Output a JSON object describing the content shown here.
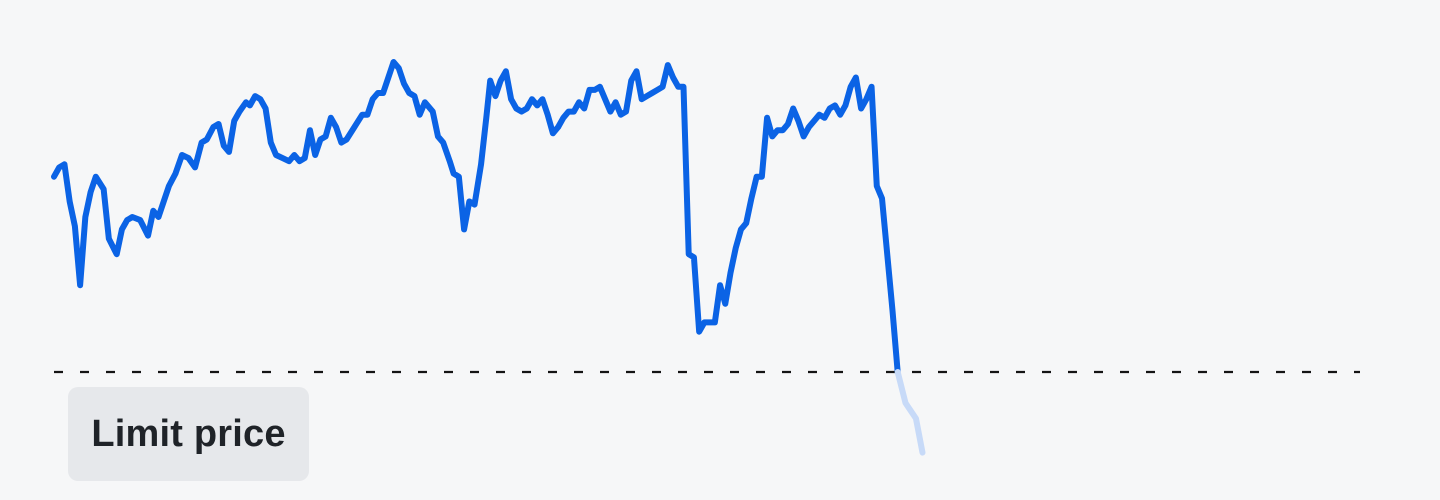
{
  "limit_label": "Limit price",
  "colors": {
    "line": "#0b63e5",
    "line_faded": "#c7daf8",
    "limit_line": "#141414",
    "background": "#f6f7f8",
    "label_bg": "#e6e8eb"
  },
  "chart_data": {
    "type": "line",
    "title": "",
    "xlabel": "",
    "ylabel": "",
    "grid": false,
    "legend": "none",
    "limit_price": 0,
    "ylim": [
      -27,
      100
    ],
    "xlim": [
      0,
      1
    ],
    "series": [
      {
        "values": [
          [
            0.0,
            63.0
          ],
          [
            0.004,
            66.0
          ],
          [
            0.008,
            67.0
          ],
          [
            0.012,
            55.0
          ],
          [
            0.016,
            47.0
          ],
          [
            0.02,
            28.0
          ],
          [
            0.024,
            50.0
          ],
          [
            0.028,
            58.0
          ],
          [
            0.032,
            63.0
          ],
          [
            0.038,
            59.0
          ],
          [
            0.042,
            43.0
          ],
          [
            0.048,
            38.0
          ],
          [
            0.052,
            46.0
          ],
          [
            0.056,
            49.0
          ],
          [
            0.06,
            50.0
          ],
          [
            0.066,
            49.0
          ],
          [
            0.072,
            44.0
          ],
          [
            0.076,
            52.0
          ],
          [
            0.08,
            50.0
          ],
          [
            0.084,
            55.0
          ],
          [
            0.088,
            60.0
          ],
          [
            0.093,
            64.0
          ],
          [
            0.098,
            70.0
          ],
          [
            0.103,
            69.0
          ],
          [
            0.108,
            66.0
          ],
          [
            0.113,
            74.0
          ],
          [
            0.117,
            75.0
          ],
          [
            0.122,
            79.0
          ],
          [
            0.126,
            80.0
          ],
          [
            0.13,
            73.0
          ],
          [
            0.134,
            71.0
          ],
          [
            0.138,
            81.0
          ],
          [
            0.142,
            84.0
          ],
          [
            0.147,
            87.0
          ],
          [
            0.15,
            86.0
          ],
          [
            0.154,
            89.0
          ],
          [
            0.158,
            88.0
          ],
          [
            0.162,
            85.0
          ],
          [
            0.166,
            74.0
          ],
          [
            0.17,
            70.0
          ],
          [
            0.175,
            69.0
          ],
          [
            0.18,
            68.0
          ],
          [
            0.184,
            70.0
          ],
          [
            0.188,
            68.0
          ],
          [
            0.192,
            69.0
          ],
          [
            0.196,
            78.0
          ],
          [
            0.2,
            70.0
          ],
          [
            0.204,
            75.0
          ],
          [
            0.208,
            76.0
          ],
          [
            0.212,
            82.0
          ],
          [
            0.216,
            79.0
          ],
          [
            0.22,
            74.0
          ],
          [
            0.224,
            75.0
          ],
          [
            0.23,
            79.0
          ],
          [
            0.236,
            83.0
          ],
          [
            0.24,
            83.0
          ],
          [
            0.244,
            88.0
          ],
          [
            0.248,
            90.0
          ],
          [
            0.252,
            90.0
          ],
          [
            0.256,
            95.0
          ],
          [
            0.26,
            100.0
          ],
          [
            0.264,
            98.0
          ],
          [
            0.268,
            93.0
          ],
          [
            0.272,
            90.0
          ],
          [
            0.276,
            89.0
          ],
          [
            0.28,
            83.0
          ],
          [
            0.284,
            87.0
          ],
          [
            0.29,
            84.0
          ],
          [
            0.294,
            76.0
          ],
          [
            0.298,
            74.0
          ],
          [
            0.303,
            68.0
          ],
          [
            0.306,
            64.0
          ],
          [
            0.31,
            63.0
          ],
          [
            0.314,
            46.0
          ],
          [
            0.318,
            55.0
          ],
          [
            0.322,
            54.0
          ],
          [
            0.327,
            67.0
          ],
          [
            0.331,
            82.0
          ],
          [
            0.334,
            94.0
          ],
          [
            0.338,
            89.0
          ],
          [
            0.342,
            94.0
          ],
          [
            0.346,
            97.0
          ],
          [
            0.35,
            88.0
          ],
          [
            0.354,
            85.0
          ],
          [
            0.358,
            84.0
          ],
          [
            0.362,
            85.0
          ],
          [
            0.366,
            88.0
          ],
          [
            0.37,
            86.0
          ],
          [
            0.374,
            88.0
          ],
          [
            0.378,
            83.0
          ],
          [
            0.382,
            77.0
          ],
          [
            0.386,
            79.0
          ],
          [
            0.39,
            82.0
          ],
          [
            0.394,
            84.0
          ],
          [
            0.398,
            84.0
          ],
          [
            0.402,
            87.0
          ],
          [
            0.406,
            85.0
          ],
          [
            0.41,
            91.0
          ],
          [
            0.414,
            91.0
          ],
          [
            0.418,
            92.0
          ],
          [
            0.422,
            88.0
          ],
          [
            0.426,
            84.0
          ],
          [
            0.43,
            87.0
          ],
          [
            0.434,
            83.0
          ],
          [
            0.438,
            84.0
          ],
          [
            0.442,
            94.0
          ],
          [
            0.446,
            97.0
          ],
          [
            0.45,
            88.0
          ],
          [
            0.454,
            89.0
          ],
          [
            0.458,
            90.0
          ],
          [
            0.462,
            91.0
          ],
          [
            0.466,
            92.0
          ],
          [
            0.47,
            99.0
          ],
          [
            0.474,
            95.0
          ],
          [
            0.478,
            92.0
          ],
          [
            0.482,
            92.0
          ],
          [
            0.486,
            38.0
          ],
          [
            0.49,
            37.0
          ],
          [
            0.494,
            13.0
          ],
          [
            0.498,
            16.0
          ],
          [
            0.502,
            16.0
          ],
          [
            0.506,
            16.0
          ],
          [
            0.51,
            28.0
          ],
          [
            0.514,
            22.0
          ],
          [
            0.518,
            32.0
          ],
          [
            0.522,
            40.0
          ],
          [
            0.526,
            46.0
          ],
          [
            0.53,
            48.0
          ],
          [
            0.534,
            56.0
          ],
          [
            0.538,
            63.0
          ],
          [
            0.542,
            63.0
          ],
          [
            0.546,
            82.0
          ],
          [
            0.55,
            76.0
          ],
          [
            0.554,
            78.0
          ],
          [
            0.558,
            78.0
          ],
          [
            0.562,
            80.0
          ],
          [
            0.566,
            85.0
          ],
          [
            0.57,
            81.0
          ],
          [
            0.574,
            76.0
          ],
          [
            0.578,
            79.0
          ],
          [
            0.582,
            81.0
          ],
          [
            0.586,
            83.0
          ],
          [
            0.59,
            82.0
          ],
          [
            0.594,
            85.0
          ],
          [
            0.598,
            86.0
          ],
          [
            0.602,
            83.0
          ],
          [
            0.606,
            86.0
          ],
          [
            0.61,
            92.0
          ],
          [
            0.614,
            95.0
          ],
          [
            0.618,
            85.0
          ],
          [
            0.622,
            88.0
          ],
          [
            0.626,
            92.0
          ],
          [
            0.63,
            60.0
          ],
          [
            0.634,
            56.0
          ],
          [
            0.638,
            38.0
          ],
          [
            0.642,
            20.0
          ],
          [
            0.646,
            0.0
          ]
        ]
      },
      {
        "values": [
          [
            0.646,
            0.0
          ],
          [
            0.652,
            -10.0
          ],
          [
            0.66,
            -15.0
          ],
          [
            0.665,
            -26.0
          ]
        ]
      }
    ]
  }
}
